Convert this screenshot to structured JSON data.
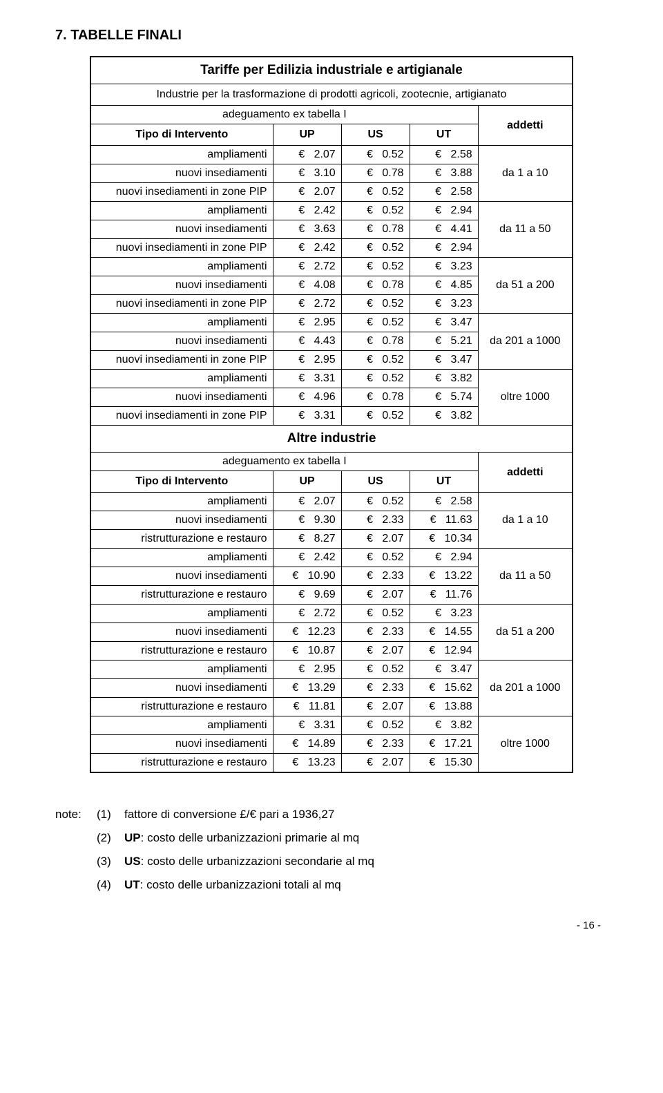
{
  "section_title": "7. TABELLE FINALI",
  "table1": {
    "title": "Tariffe per Edilizia industriale e artigianale",
    "subtitle": "Industrie per la trasformazione di prodotti agricoli, zootecnie, artigianato",
    "adeg": "adeguamento ex tabella I",
    "header": {
      "tipo": "Tipo di Intervento",
      "up": "UP",
      "us": "US",
      "ut": "UT",
      "addetti": "addetti"
    },
    "groups": [
      {
        "addetti": "da 1 a 10",
        "rows": [
          {
            "label": "ampliamenti",
            "up": "2.07",
            "us": "0.52",
            "ut": "2.58"
          },
          {
            "label": "nuovi insediamenti",
            "up": "3.10",
            "us": "0.78",
            "ut": "3.88"
          },
          {
            "label": "nuovi insediamenti in zone PIP",
            "up": "2.07",
            "us": "0.52",
            "ut": "2.58"
          }
        ]
      },
      {
        "addetti": "da 11 a 50",
        "rows": [
          {
            "label": "ampliamenti",
            "up": "2.42",
            "us": "0.52",
            "ut": "2.94"
          },
          {
            "label": "nuovi insediamenti",
            "up": "3.63",
            "us": "0.78",
            "ut": "4.41"
          },
          {
            "label": "nuovi insediamenti in zone PIP",
            "up": "2.42",
            "us": "0.52",
            "ut": "2.94"
          }
        ]
      },
      {
        "addetti": "da 51 a 200",
        "rows": [
          {
            "label": "ampliamenti",
            "up": "2.72",
            "us": "0.52",
            "ut": "3.23"
          },
          {
            "label": "nuovi insediamenti",
            "up": "4.08",
            "us": "0.78",
            "ut": "4.85"
          },
          {
            "label": "nuovi insediamenti in zone PIP",
            "up": "2.72",
            "us": "0.52",
            "ut": "3.23"
          }
        ]
      },
      {
        "addetti": "da 201 a 1000",
        "rows": [
          {
            "label": "ampliamenti",
            "up": "2.95",
            "us": "0.52",
            "ut": "3.47"
          },
          {
            "label": "nuovi insediamenti",
            "up": "4.43",
            "us": "0.78",
            "ut": "5.21"
          },
          {
            "label": "nuovi insediamenti in zone PIP",
            "up": "2.95",
            "us": "0.52",
            "ut": "3.47"
          }
        ]
      },
      {
        "addetti": "oltre 1000",
        "rows": [
          {
            "label": "ampliamenti",
            "up": "3.31",
            "us": "0.52",
            "ut": "3.82"
          },
          {
            "label": "nuovi insediamenti",
            "up": "4.96",
            "us": "0.78",
            "ut": "5.74"
          },
          {
            "label": "nuovi insediamenti in zone PIP",
            "up": "3.31",
            "us": "0.52",
            "ut": "3.82"
          }
        ]
      }
    ]
  },
  "table2": {
    "title": "Altre industrie",
    "adeg": "adeguamento ex tabella I",
    "header": {
      "tipo": "Tipo di Intervento",
      "up": "UP",
      "us": "US",
      "ut": "UT",
      "addetti": "addetti"
    },
    "groups": [
      {
        "addetti": "da 1 a 10",
        "rows": [
          {
            "label": "ampliamenti",
            "up": "2.07",
            "us": "0.52",
            "ut": "2.58"
          },
          {
            "label": "nuovi insediamenti",
            "up": "9.30",
            "us": "2.33",
            "ut": "11.63"
          },
          {
            "label": "ristrutturazione e restauro",
            "up": "8.27",
            "us": "2.07",
            "ut": "10.34"
          }
        ]
      },
      {
        "addetti": "da 11 a 50",
        "rows": [
          {
            "label": "ampliamenti",
            "up": "2.42",
            "us": "0.52",
            "ut": "2.94"
          },
          {
            "label": "nuovi insediamenti",
            "up": "10.90",
            "us": "2.33",
            "ut": "13.22"
          },
          {
            "label": "ristrutturazione e restauro",
            "up": "9.69",
            "us": "2.07",
            "ut": "11.76"
          }
        ]
      },
      {
        "addetti": "da 51 a 200",
        "rows": [
          {
            "label": "ampliamenti",
            "up": "2.72",
            "us": "0.52",
            "ut": "3.23"
          },
          {
            "label": "nuovi insediamenti",
            "up": "12.23",
            "us": "2.33",
            "ut": "14.55"
          },
          {
            "label": "ristrutturazione e restauro",
            "up": "10.87",
            "us": "2.07",
            "ut": "12.94"
          }
        ]
      },
      {
        "addetti": "da 201 a 1000",
        "rows": [
          {
            "label": "ampliamenti",
            "up": "2.95",
            "us": "0.52",
            "ut": "3.47"
          },
          {
            "label": "nuovi insediamenti",
            "up": "13.29",
            "us": "2.33",
            "ut": "15.62"
          },
          {
            "label": "ristrutturazione e restauro",
            "up": "11.81",
            "us": "2.07",
            "ut": "13.88"
          }
        ]
      },
      {
        "addetti": "oltre 1000",
        "rows": [
          {
            "label": "ampliamenti",
            "up": "3.31",
            "us": "0.52",
            "ut": "3.82"
          },
          {
            "label": "nuovi insediamenti",
            "up": "14.89",
            "us": "2.33",
            "ut": "17.21"
          },
          {
            "label": "ristrutturazione e restauro",
            "up": "13.23",
            "us": "2.07",
            "ut": "15.30"
          }
        ]
      }
    ]
  },
  "notes": {
    "prefix": "note:",
    "items": [
      {
        "num": "(1)",
        "text": "fattore di conversione £/€ pari a 1936,27"
      },
      {
        "num": "(2)",
        "bold": "UP",
        "text": ": costo delle urbanizzazioni primarie al mq"
      },
      {
        "num": "(3)",
        "bold": "US",
        "text": ": costo delle urbanizzazioni secondarie al mq"
      },
      {
        "num": "(4)",
        "bold": "UT",
        "text": ": costo delle urbanizzazioni totali al mq"
      }
    ]
  },
  "page_number": "- 16 -",
  "currency": "€"
}
